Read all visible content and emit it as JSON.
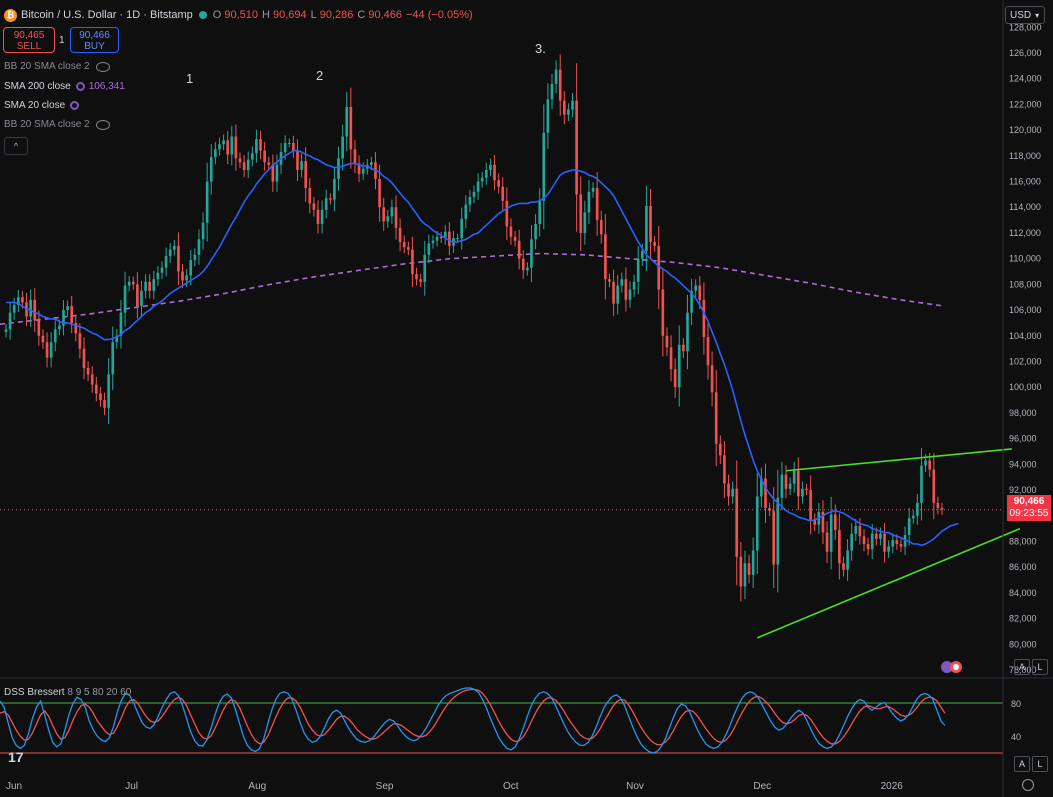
{
  "header": {
    "symbol": "Bitcoin / U.S. Dollar · 1D · Bitstamp",
    "ohlc": [
      {
        "label": "O",
        "value": "90,510"
      },
      {
        "label": "H",
        "value": "90,694"
      },
      {
        "label": "L",
        "value": "90,286"
      },
      {
        "label": "C",
        "value": "90,466"
      }
    ],
    "change": "−44 (−0.05%)",
    "logo_icon": "bitcoin-logo-icon",
    "currency": "USD"
  },
  "trade": {
    "sell_price": "90,465",
    "sell_label": "SELL",
    "qty": "1",
    "buy_price": "90,466",
    "buy_label": "BUY"
  },
  "indicators": [
    {
      "name": "BB 20 SMA close 2",
      "value": "",
      "icon": "eye-hidden-icon"
    },
    {
      "name": "SMA 200 close",
      "value": "106,341",
      "icon": "gear-icon"
    },
    {
      "name": "SMA 20 close",
      "value": "",
      "icon": "gear-icon"
    },
    {
      "name": "BB 20 SMA close 2",
      "value": "",
      "icon": "eye-hidden-icon"
    }
  ],
  "collapse_icon": "chevron-up-icon",
  "price_tag": {
    "price": "90,466",
    "countdown": "09:23:55"
  },
  "oscillator": {
    "name": "DSS Bressert",
    "params": "8 9 5 80 20 60",
    "levels": [
      80,
      40
    ]
  },
  "scale_buttons": {
    "auto": "A",
    "log": "L"
  },
  "settings_icon": "gear-icon",
  "tv_logo": "17",
  "colors": {
    "up": "#26a69a",
    "down": "#ef5350",
    "sma20": "#2962ff",
    "sma200": "#b16ad9",
    "trend": "#4ade20",
    "dss_k": "#2196f3",
    "dss_d": "#ef5350"
  },
  "chart_data": {
    "type": "candlestick",
    "x_tick_labels": [
      "Jun",
      "Jul",
      "Aug",
      "Sep",
      "Oct",
      "Nov",
      "Dec",
      "2026"
    ],
    "y_ticks": [
      78000,
      80000,
      82000,
      84000,
      86000,
      88000,
      90000,
      92000,
      94000,
      96000,
      98000,
      100000,
      102000,
      104000,
      106000,
      108000,
      110000,
      112000,
      114000,
      116000,
      118000,
      120000,
      122000,
      124000,
      126000,
      128000
    ],
    "y_range": [
      78000,
      129500
    ],
    "annotations": [
      "1",
      "2",
      "3."
    ],
    "last_price": 90466,
    "close_series": [
      104500,
      105800,
      106400,
      107000,
      106600,
      105500,
      106800,
      105200,
      104000,
      103500,
      102300,
      103500,
      104500,
      104800,
      106000,
      106300,
      105000,
      104200,
      103000,
      101500,
      101000,
      100200,
      99500,
      99000,
      98400,
      101000,
      103500,
      104000,
      105800,
      107900,
      108200,
      108000,
      106300,
      107500,
      108200,
      107500,
      108400,
      108900,
      109300,
      110200,
      110700,
      111000,
      109000,
      108300,
      108700,
      109900,
      110300,
      111500,
      112800,
      116000,
      117900,
      118500,
      118900,
      119200,
      118100,
      119500,
      117800,
      117500,
      116900,
      117700,
      118200,
      119300,
      118400,
      117500,
      117300,
      116000,
      117300,
      118300,
      119000,
      119000,
      118400,
      116900,
      117600,
      115500,
      114300,
      113800,
      112700,
      113800,
      114700,
      114600,
      116200,
      117800,
      119500,
      121800,
      118500,
      117400,
      116600,
      117000,
      117300,
      117500,
      116200,
      114000,
      112900,
      113300,
      114000,
      112400,
      111300,
      110900,
      110700,
      108800,
      108400,
      108200,
      110300,
      111200,
      111400,
      111700,
      111600,
      112100,
      111000,
      111600,
      111600,
      113100,
      114200,
      114800,
      115200,
      116000,
      116300,
      116900,
      117300,
      116100,
      115600,
      114500,
      112500,
      111700,
      111400,
      110000,
      109100,
      109300,
      111500,
      112700,
      114500,
      119800,
      122400,
      123600,
      124700,
      122300,
      121200,
      121600,
      122300,
      115000,
      112000,
      113600,
      115200,
      115500,
      113000,
      111900,
      108400,
      108200,
      106500,
      107900,
      108400,
      106800,
      107600,
      108200,
      110000,
      110600,
      114100,
      111300,
      111000,
      107600,
      104000,
      103100,
      101400,
      100000,
      103300,
      102800,
      105800,
      107500,
      107900,
      106800,
      103900,
      101700,
      99600,
      95600,
      94700,
      92500,
      91500,
      92100,
      86800,
      84500,
      86300,
      85400,
      87300,
      91500,
      92900,
      90600,
      90400,
      86200,
      91400,
      93200,
      92100,
      92500,
      93500,
      91500,
      92100,
      92000,
      89700,
      89300,
      90300,
      88700,
      87200,
      90100,
      88900,
      86300,
      85800,
      87300,
      88600,
      89200,
      88400,
      87800,
      87400,
      88600,
      88200,
      88600,
      87200,
      87600,
      88100,
      87800,
      87600,
      88500,
      89800,
      90000,
      91000,
      93900,
      94300,
      93600,
      91000,
      90600,
      90466
    ],
    "sma20_series": [
      106600,
      106600,
      106600,
      106500,
      106300,
      106100,
      106000,
      105800,
      105700,
      105500,
      105400,
      105300,
      105300,
      105100,
      105000,
      105000,
      104900,
      104800,
      104700,
      104600,
      104400,
      104200,
      104100,
      103900,
      103700,
      103700,
      103800,
      103900,
      104100,
      104400,
      104600,
      104900,
      105200,
      105500,
      105800,
      106000,
      106300,
      106500,
      106700,
      107000,
      107300,
      107500,
      107700,
      107900,
      108100,
      108300,
      108500,
      108700,
      109000,
      109400,
      109900,
      110400,
      110900,
      111500,
      112100,
      112700,
      113200,
      113800,
      114400,
      114900,
      115300,
      115800,
      116200,
      116600,
      116900,
      117300,
      117500,
      117800,
      118000,
      118200,
      118400,
      118400,
      118300,
      118100,
      118000,
      117800,
      117700,
      117500,
      117300,
      117200,
      117100,
      117100,
      117200,
      117300,
      117400,
      117400,
      117300,
      117200,
      117200,
      117000,
      116900,
      116700,
      116400,
      116200,
      115900,
      115500,
      115100,
      114700,
      114400,
      113900,
      113500,
      113000,
      112700,
      112500,
      112200,
      112000,
      111800,
      111600,
      111400,
      111300,
      111300,
      111400,
      111500,
      111700,
      111900,
      112000,
      112300,
      112600,
      112900,
      113200,
      113500,
      113700,
      113900,
      114100,
      114200,
      114300,
      114300,
      114300,
      114400,
      114400,
      114500,
      114700,
      115000,
      115500,
      116000,
      116500,
      116700,
      116800,
      116900,
      116900,
      116800,
      116700,
      116500,
      116400,
      116200,
      115900,
      115600,
      115300,
      114900,
      114300,
      113700,
      113100,
      112500,
      111900,
      111300,
      110800,
      110300,
      110000,
      109700,
      109400,
      109200,
      109000,
      108700,
      108500,
      108200,
      107900,
      107600,
      107300,
      106900,
      106400,
      105800,
      105100,
      104300,
      103500,
      102600,
      101800,
      100800,
      99800,
      98600,
      97400,
      96300,
      95300,
      94300,
      93500,
      92800,
      92200,
      91700,
      91300,
      91000,
      90700,
      90400,
      90200,
      90100,
      89900,
      89800,
      89700,
      89600,
      89700,
      89800,
      90000,
      90200,
      90300,
      90400,
      90300,
      90200,
      90000,
      89800,
      89600,
      89400,
      89300,
      89200,
      89000,
      88900,
      88800,
      88700,
      88700,
      88500,
      88400,
      88300,
      88100,
      88000,
      87800,
      87800,
      87700,
      87800,
      88000,
      88200,
      88500,
      88800,
      89000,
      89200,
      89300,
      89400
    ],
    "sma200_series": [
      104900,
      105300,
      105700,
      106200,
      106700,
      107300,
      108000,
      108600,
      109100,
      109600,
      110000,
      110200,
      110400,
      110300,
      110000,
      109700,
      109300,
      108700,
      108100,
      107400,
      106800,
      106300
    ],
    "trendlines": [
      {
        "from": {
          "x_index": 190,
          "y": 93500
        },
        "to": {
          "x_index": 245,
          "y": 95200
        }
      },
      {
        "from": {
          "x_index": 183,
          "y": 80500
        },
        "to": {
          "x_index": 247,
          "y": 89000
        }
      }
    ],
    "dss_k": [
      78,
      70,
      50,
      30,
      20,
      16,
      20,
      35,
      55,
      70,
      78,
      60,
      40,
      24,
      18,
      22,
      40,
      60,
      75,
      83,
      80,
      70,
      52,
      40,
      32,
      27,
      25,
      30,
      45,
      65,
      80,
      88,
      85,
      75,
      62,
      50,
      44,
      42,
      47,
      58,
      70,
      80,
      88,
      90,
      85,
      72,
      55,
      38,
      26,
      20,
      19,
      27,
      42,
      60,
      75,
      84,
      87,
      82,
      68,
      50,
      32,
      20,
      14,
      12,
      16,
      28,
      48,
      66,
      80,
      88,
      90,
      88,
      80,
      66,
      50,
      36,
      28,
      24,
      26,
      32,
      43,
      55,
      63,
      66,
      62,
      52,
      42,
      34,
      28,
      25,
      24,
      26,
      30,
      37,
      44,
      50,
      54,
      52,
      46,
      38,
      32,
      28,
      26,
      28,
      34,
      42,
      52,
      62,
      72,
      80,
      85,
      88,
      90,
      92,
      94,
      95,
      95,
      93,
      89,
      80,
      68,
      54,
      42,
      30,
      22,
      16,
      14,
      18,
      28,
      42,
      58,
      72,
      82,
      88,
      90,
      88,
      82,
      72,
      60,
      48,
      38,
      30,
      24,
      20,
      20,
      24,
      32,
      44,
      58,
      70,
      78,
      84,
      86,
      82,
      72,
      58,
      44,
      32,
      22,
      16,
      12,
      10,
      12,
      18,
      28,
      42,
      56,
      68,
      74,
      72,
      64,
      52,
      40,
      30,
      22,
      18,
      16,
      18,
      24,
      34,
      46,
      60,
      72,
      82,
      88,
      90,
      88,
      82,
      72,
      62,
      52,
      44,
      40,
      42,
      48,
      56,
      62,
      66,
      62,
      52,
      40,
      30,
      22,
      18,
      16,
      18,
      24,
      34,
      46,
      58,
      68,
      76,
      80,
      78,
      70,
      66,
      70,
      74,
      76,
      70,
      62,
      56,
      52,
      54,
      60,
      70,
      80,
      86,
      88,
      86,
      80,
      66,
      52,
      46
    ],
    "dss_d": [
      62,
      64,
      60,
      50,
      40,
      32,
      27,
      28,
      36,
      48,
      60,
      65,
      58,
      46,
      35,
      28,
      30,
      40,
      53,
      64,
      72,
      74,
      70,
      62,
      52,
      45,
      38,
      34,
      36,
      45,
      57,
      70,
      78,
      80,
      75,
      66,
      58,
      52,
      50,
      52,
      58,
      66,
      74,
      80,
      83,
      80,
      72,
      60,
      48,
      37,
      30,
      28,
      32,
      42,
      54,
      66,
      75,
      80,
      78,
      70,
      58,
      45,
      34,
      26,
      22,
      24,
      32,
      44,
      57,
      68,
      77,
      82,
      82,
      78,
      70,
      59,
      48,
      40,
      34,
      32,
      34,
      40,
      47,
      54,
      58,
      58,
      54,
      48,
      41,
      36,
      32,
      29,
      28,
      30,
      34,
      39,
      44,
      48,
      48,
      46,
      42,
      38,
      34,
      32,
      31,
      33,
      38,
      45,
      54,
      63,
      71,
      78,
      83,
      87,
      90,
      92,
      93,
      93,
      92,
      88,
      81,
      72,
      62,
      51,
      42,
      34,
      28,
      25,
      26,
      31,
      40,
      51,
      62,
      71,
      78,
      82,
      82,
      79,
      73,
      65,
      56,
      48,
      41,
      34,
      30,
      28,
      29,
      34,
      42,
      52,
      61,
      70,
      77,
      80,
      79,
      73,
      64,
      54,
      44,
      36,
      29,
      24,
      21,
      21,
      24,
      30,
      39,
      49,
      58,
      64,
      66,
      64,
      58,
      50,
      42,
      35,
      29,
      25,
      24,
      27,
      33,
      42,
      53,
      63,
      72,
      79,
      83,
      84,
      81,
      76,
      70,
      62,
      55,
      50,
      48,
      50,
      54,
      59,
      61,
      59,
      53,
      45,
      37,
      30,
      25,
      22,
      22,
      25,
      31,
      39,
      48,
      57,
      65,
      70,
      72,
      70,
      68,
      68,
      70,
      71,
      68,
      64,
      60,
      58,
      59,
      63,
      69,
      76,
      81,
      83,
      82,
      78,
      70,
      62
    ]
  }
}
